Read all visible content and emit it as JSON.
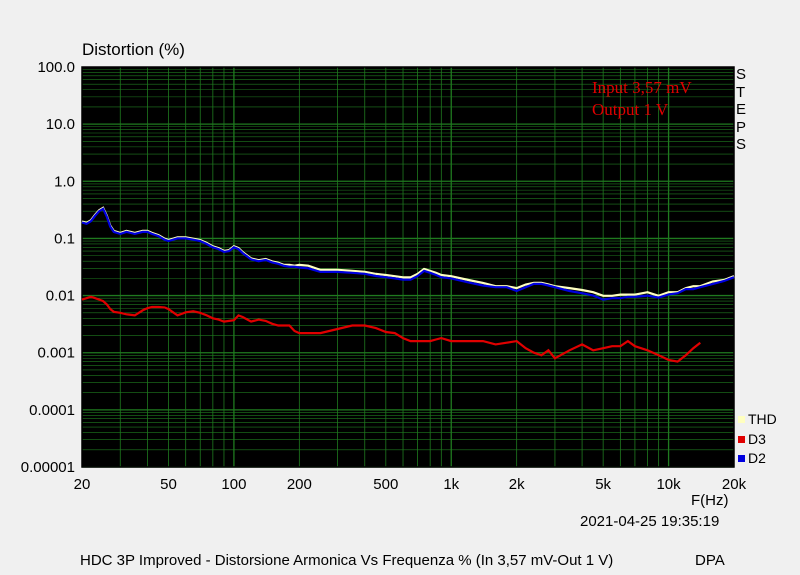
{
  "chart_data": {
    "type": "line",
    "ylabel": "Distortion (%)",
    "xlabel": "F(Hz)",
    "x_scale": "log",
    "y_scale": "log",
    "xlim": [
      20,
      20000
    ],
    "ylim": [
      1e-05,
      100
    ],
    "grid": true,
    "background": "#000000",
    "grid_color": "#1f7a1f",
    "x_ticks": [
      {
        "value": 20,
        "label": "20"
      },
      {
        "value": 50,
        "label": "50"
      },
      {
        "value": 100,
        "label": "100"
      },
      {
        "value": 200,
        "label": "200"
      },
      {
        "value": 500,
        "label": "500"
      },
      {
        "value": 1000,
        "label": "1k"
      },
      {
        "value": 2000,
        "label": "2k"
      },
      {
        "value": 5000,
        "label": "5k"
      },
      {
        "value": 10000,
        "label": "10k"
      },
      {
        "value": 20000,
        "label": "20k"
      }
    ],
    "y_ticks": [
      {
        "value": 100,
        "label": "100.0"
      },
      {
        "value": 10,
        "label": "10.0"
      },
      {
        "value": 1,
        "label": "1.0"
      },
      {
        "value": 0.1,
        "label": "0.1"
      },
      {
        "value": 0.01,
        "label": "0.01"
      },
      {
        "value": 0.001,
        "label": "0.001"
      },
      {
        "value": 0.0001,
        "label": "0.0001"
      },
      {
        "value": 1e-05,
        "label": "0.00001"
      }
    ],
    "annotations": [
      "Input 3,57 mV",
      "Output 1 V"
    ],
    "annotation_color": "#e00000",
    "side_label": "STEPS",
    "legend_position": "bottom-right",
    "series": [
      {
        "name": "THD",
        "color": "#ffffc0",
        "x": [
          20,
          21,
          22,
          23,
          24,
          25,
          26,
          27,
          28,
          30,
          32,
          35,
          38,
          40,
          42,
          45,
          48,
          50,
          55,
          60,
          65,
          70,
          75,
          80,
          85,
          90,
          95,
          100,
          105,
          110,
          120,
          130,
          140,
          150,
          160,
          170,
          180,
          190,
          200,
          220,
          250,
          300,
          350,
          400,
          450,
          500,
          550,
          600,
          650,
          700,
          750,
          800,
          850,
          900,
          1000,
          1200,
          1400,
          1600,
          1800,
          2000,
          2200,
          2400,
          2600,
          2800,
          3000,
          3500,
          4000,
          4500,
          5000,
          5500,
          6000,
          6500,
          7000,
          8000,
          9000,
          10000,
          11000,
          12000,
          13000,
          14000,
          16000,
          18000,
          20000
        ],
        "values": [
          0.19,
          0.18,
          0.2,
          0.25,
          0.3,
          0.33,
          0.24,
          0.16,
          0.13,
          0.12,
          0.13,
          0.12,
          0.13,
          0.13,
          0.12,
          0.11,
          0.095,
          0.09,
          0.1,
          0.1,
          0.095,
          0.09,
          0.08,
          0.07,
          0.065,
          0.058,
          0.06,
          0.07,
          0.065,
          0.055,
          0.043,
          0.04,
          0.042,
          0.038,
          0.036,
          0.033,
          0.033,
          0.032,
          0.033,
          0.032,
          0.027,
          0.027,
          0.026,
          0.025,
          0.023,
          0.022,
          0.021,
          0.02,
          0.02,
          0.023,
          0.028,
          0.026,
          0.024,
          0.022,
          0.021,
          0.018,
          0.016,
          0.014,
          0.014,
          0.013,
          0.015,
          0.016,
          0.016,
          0.015,
          0.014,
          0.013,
          0.012,
          0.011,
          0.0095,
          0.0095,
          0.01,
          0.01,
          0.01,
          0.011,
          0.0095,
          0.011,
          0.011,
          0.013,
          0.014,
          0.014,
          0.017,
          0.018,
          0.021
        ]
      },
      {
        "name": "D3",
        "color": "#e00000",
        "x": [
          20,
          21,
          22,
          23,
          24,
          25,
          26,
          27,
          28,
          30,
          32,
          35,
          38,
          40,
          42,
          45,
          48,
          50,
          55,
          60,
          65,
          70,
          75,
          80,
          85,
          90,
          95,
          100,
          105,
          110,
          120,
          130,
          140,
          150,
          160,
          170,
          180,
          190,
          200,
          220,
          250,
          300,
          350,
          400,
          450,
          500,
          550,
          600,
          650,
          700,
          750,
          800,
          850,
          900,
          1000,
          1200,
          1400,
          1600,
          1800,
          2000,
          2200,
          2400,
          2600,
          2800,
          3000,
          3500,
          4000,
          4500,
          5000,
          5500,
          6000,
          6500,
          7000,
          8000,
          9000,
          10000,
          11000,
          12000,
          13000,
          14000
        ],
        "values": [
          0.0085,
          0.009,
          0.0095,
          0.009,
          0.0085,
          0.008,
          0.007,
          0.0058,
          0.0052,
          0.005,
          0.0047,
          0.0045,
          0.0055,
          0.006,
          0.0063,
          0.0063,
          0.0062,
          0.0058,
          0.0045,
          0.0051,
          0.0053,
          0.005,
          0.0045,
          0.004,
          0.0038,
          0.0035,
          0.0036,
          0.0037,
          0.0045,
          0.0042,
          0.0035,
          0.0038,
          0.0036,
          0.0032,
          0.003,
          0.003,
          0.003,
          0.0024,
          0.0022,
          0.0022,
          0.0022,
          0.0026,
          0.003,
          0.003,
          0.0027,
          0.0023,
          0.0022,
          0.0018,
          0.0016,
          0.0016,
          0.0016,
          0.0016,
          0.0017,
          0.0018,
          0.0016,
          0.0016,
          0.0016,
          0.0014,
          0.0015,
          0.0016,
          0.0012,
          0.001,
          0.0009,
          0.0011,
          0.0008,
          0.0011,
          0.0014,
          0.0011,
          0.0012,
          0.0013,
          0.0013,
          0.0016,
          0.0013,
          0.0011,
          0.0009,
          0.00075,
          0.0007,
          0.0009,
          0.0012,
          0.0015
        ]
      },
      {
        "name": "D2",
        "color": "#0000e0",
        "x": [
          20,
          21,
          22,
          23,
          24,
          25,
          26,
          27,
          28,
          30,
          32,
          35,
          38,
          40,
          42,
          45,
          48,
          50,
          55,
          60,
          65,
          70,
          75,
          80,
          85,
          90,
          95,
          100,
          105,
          110,
          120,
          130,
          140,
          150,
          160,
          170,
          180,
          190,
          200,
          220,
          250,
          300,
          350,
          400,
          450,
          500,
          550,
          600,
          650,
          700,
          750,
          800,
          850,
          900,
          1000,
          1200,
          1400,
          1600,
          1800,
          2000,
          2200,
          2400,
          2600,
          2800,
          3000,
          3500,
          4000,
          4500,
          5000,
          5500,
          6000,
          6500,
          7000,
          8000,
          9000,
          10000,
          11000,
          12000,
          13000,
          14000,
          16000,
          18000,
          20000
        ],
        "values": [
          0.19,
          0.18,
          0.2,
          0.25,
          0.3,
          0.33,
          0.24,
          0.16,
          0.13,
          0.12,
          0.13,
          0.12,
          0.13,
          0.13,
          0.12,
          0.11,
          0.095,
          0.09,
          0.1,
          0.1,
          0.095,
          0.09,
          0.08,
          0.07,
          0.065,
          0.058,
          0.06,
          0.07,
          0.065,
          0.055,
          0.043,
          0.04,
          0.042,
          0.038,
          0.036,
          0.033,
          0.032,
          0.032,
          0.031,
          0.03,
          0.026,
          0.026,
          0.025,
          0.024,
          0.022,
          0.021,
          0.02,
          0.019,
          0.019,
          0.022,
          0.027,
          0.025,
          0.023,
          0.021,
          0.02,
          0.017,
          0.015,
          0.014,
          0.014,
          0.012,
          0.014,
          0.016,
          0.016,
          0.015,
          0.014,
          0.012,
          0.011,
          0.01,
          0.0085,
          0.009,
          0.009,
          0.0095,
          0.0095,
          0.01,
          0.0092,
          0.0105,
          0.011,
          0.013,
          0.013,
          0.014,
          0.016,
          0.018,
          0.021
        ]
      }
    ]
  },
  "header": {
    "y_title": "Distortion (%)"
  },
  "side": {
    "steps": [
      "S",
      "T",
      "E",
      "P",
      "S"
    ]
  },
  "footer": {
    "timestamp": "2021-04-25 19:35:19",
    "title": "HDC 3P Improved - Distorsione Armonica Vs Frequenza % (In 3,57 mV-Out 1 V)",
    "brand": "DPA"
  }
}
